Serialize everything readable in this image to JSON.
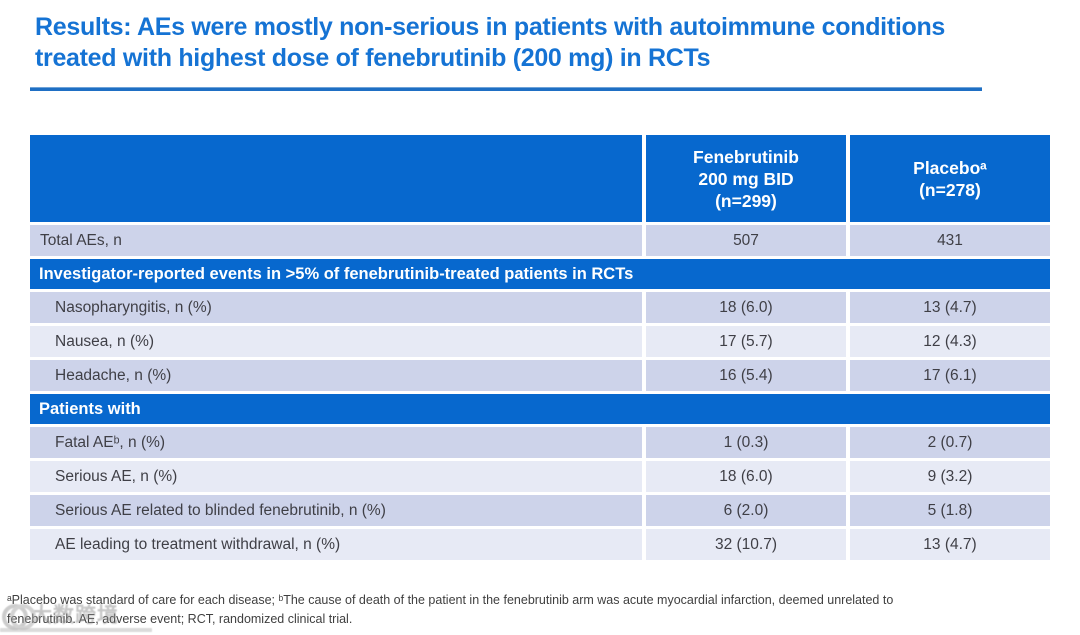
{
  "slide": {
    "title_lines": [
      "Results: AEs were mostly non-serious in patients with autoimmune conditions",
      "treated with highest dose of fenebrutinib (200 mg) in RCTs"
    ]
  },
  "table": {
    "header": {
      "fenebrutinib_lines": [
        "Fenebrutinib",
        "200 mg BID",
        "(n=299)"
      ],
      "placebo_lines": [
        "Placeboᵃ",
        "(n=278)"
      ]
    },
    "rows": [
      {
        "type": "data",
        "label": "Total AEs, n",
        "fenebrutinib": "507",
        "placebo": "431"
      },
      {
        "type": "section",
        "label": "Investigator-reported events in >5% of fenebrutinib-treated patients in RCTs"
      },
      {
        "type": "data",
        "label": "Nasopharyngitis, n (%)",
        "fenebrutinib": "18 (6.0)",
        "placebo": "13 (4.7)"
      },
      {
        "type": "data",
        "label": "Nausea, n (%)",
        "fenebrutinib": "17 (5.7)",
        "placebo": "12 (4.3)"
      },
      {
        "type": "data",
        "label": "Headache, n (%)",
        "fenebrutinib": "16 (5.4)",
        "placebo": "17 (6.1)"
      },
      {
        "type": "section",
        "label": "Patients with"
      },
      {
        "type": "data",
        "label": "Fatal AEᵇ, n (%)",
        "fenebrutinib": "1 (0.3)",
        "placebo": "2 (0.7)"
      },
      {
        "type": "data",
        "label": "Serious AE, n (%)",
        "fenebrutinib": "18 (6.0)",
        "placebo": "9 (3.2)"
      },
      {
        "type": "data",
        "label": "Serious AE related to blinded fenebrutinib, n (%)",
        "fenebrutinib": "6 (2.0)",
        "placebo": "5 (1.8)"
      },
      {
        "type": "data",
        "label": "AE leading to treatment withdrawal, n (%)",
        "fenebrutinib": "32 (10.7)",
        "placebo": "13 (4.7)"
      }
    ]
  },
  "footnote": {
    "lines": [
      "ᵃPlacebo was standard of care for each disease; ᵇThe cause of death of the patient in the fenebrutinib arm was acute myocardial infarction, deemed unrelated to",
      "fenebrutinib. AE, adverse event; RCT, randomized clinical trial."
    ]
  },
  "watermark": {
    "text": "大数跨境"
  },
  "colors": {
    "title_blue": "#1573D4",
    "table_blue": "#0768CE",
    "row_dark": "#CDD3EA",
    "row_light": "#E7EAF5",
    "body_text": "#3F3F46"
  }
}
